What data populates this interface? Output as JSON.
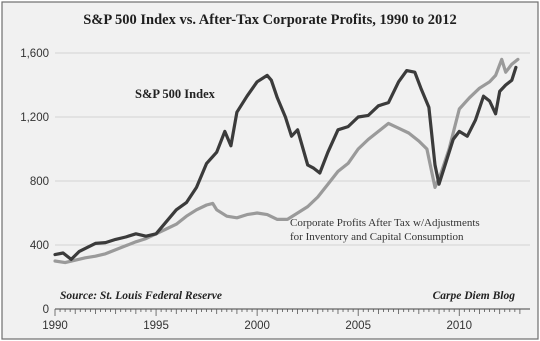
{
  "chart_data": {
    "type": "line",
    "title": "S&P 500 Index vs. After-Tax Corporate Profits, 1990 to 2012",
    "xlabel": "",
    "ylabel": "",
    "xlim": [
      1990,
      2013.5
    ],
    "ylim": [
      0,
      1700
    ],
    "x_ticks": [
      "1990",
      "1995",
      "2000",
      "2005",
      "2010"
    ],
    "y_ticks": [
      "0",
      "400",
      "800",
      "1,200",
      "1,600"
    ],
    "grid": true,
    "series": [
      {
        "name": "S&P 500 Index",
        "color": "#3b3b3b",
        "points": [
          [
            1990.0,
            340
          ],
          [
            1990.4,
            350
          ],
          [
            1990.8,
            310
          ],
          [
            1991.2,
            360
          ],
          [
            1991.6,
            385
          ],
          [
            1992.0,
            410
          ],
          [
            1992.5,
            415
          ],
          [
            1993.0,
            435
          ],
          [
            1993.5,
            450
          ],
          [
            1994.0,
            470
          ],
          [
            1994.5,
            455
          ],
          [
            1995.0,
            470
          ],
          [
            1995.5,
            545
          ],
          [
            1996.0,
            620
          ],
          [
            1996.5,
            665
          ],
          [
            1997.0,
            760
          ],
          [
            1997.5,
            910
          ],
          [
            1998.0,
            980
          ],
          [
            1998.4,
            1110
          ],
          [
            1998.7,
            1020
          ],
          [
            1999.0,
            1230
          ],
          [
            1999.5,
            1330
          ],
          [
            2000.0,
            1420
          ],
          [
            2000.5,
            1460
          ],
          [
            2000.7,
            1430
          ],
          [
            2001.0,
            1320
          ],
          [
            2001.4,
            1200
          ],
          [
            2001.7,
            1080
          ],
          [
            2002.0,
            1120
          ],
          [
            2002.5,
            900
          ],
          [
            2002.8,
            880
          ],
          [
            2003.1,
            850
          ],
          [
            2003.5,
            980
          ],
          [
            2004.0,
            1120
          ],
          [
            2004.5,
            1140
          ],
          [
            2005.0,
            1200
          ],
          [
            2005.5,
            1210
          ],
          [
            2006.0,
            1270
          ],
          [
            2006.5,
            1290
          ],
          [
            2007.0,
            1420
          ],
          [
            2007.4,
            1490
          ],
          [
            2007.8,
            1480
          ],
          [
            2008.1,
            1380
          ],
          [
            2008.5,
            1260
          ],
          [
            2008.8,
            900
          ],
          [
            2009.0,
            780
          ],
          [
            2009.3,
            900
          ],
          [
            2009.7,
            1060
          ],
          [
            2010.0,
            1110
          ],
          [
            2010.4,
            1080
          ],
          [
            2010.8,
            1180
          ],
          [
            2011.2,
            1330
          ],
          [
            2011.5,
            1300
          ],
          [
            2011.8,
            1220
          ],
          [
            2012.0,
            1360
          ],
          [
            2012.3,
            1400
          ],
          [
            2012.6,
            1430
          ],
          [
            2012.8,
            1510
          ]
        ]
      },
      {
        "name": "Corporate Profits After Tax w/Adjustments for Inventory and Capital Consumption",
        "color": "#9a9a9a",
        "points": [
          [
            1990.0,
            300
          ],
          [
            1990.5,
            290
          ],
          [
            1991.0,
            305
          ],
          [
            1991.5,
            320
          ],
          [
            1992.0,
            330
          ],
          [
            1992.5,
            345
          ],
          [
            1993.0,
            370
          ],
          [
            1993.5,
            395
          ],
          [
            1994.0,
            420
          ],
          [
            1994.5,
            440
          ],
          [
            1995.0,
            470
          ],
          [
            1995.5,
            500
          ],
          [
            1996.0,
            530
          ],
          [
            1996.5,
            580
          ],
          [
            1997.0,
            620
          ],
          [
            1997.5,
            650
          ],
          [
            1997.8,
            660
          ],
          [
            1998.0,
            620
          ],
          [
            1998.5,
            580
          ],
          [
            1999.0,
            570
          ],
          [
            1999.5,
            590
          ],
          [
            2000.0,
            600
          ],
          [
            2000.5,
            590
          ],
          [
            2001.0,
            560
          ],
          [
            2001.5,
            560
          ],
          [
            2002.0,
            600
          ],
          [
            2002.5,
            640
          ],
          [
            2003.0,
            700
          ],
          [
            2003.5,
            780
          ],
          [
            2004.0,
            860
          ],
          [
            2004.5,
            910
          ],
          [
            2005.0,
            1000
          ],
          [
            2005.5,
            1060
          ],
          [
            2006.0,
            1110
          ],
          [
            2006.5,
            1160
          ],
          [
            2007.0,
            1130
          ],
          [
            2007.5,
            1100
          ],
          [
            2008.0,
            1050
          ],
          [
            2008.4,
            1000
          ],
          [
            2008.8,
            760
          ],
          [
            2009.1,
            850
          ],
          [
            2009.5,
            1000
          ],
          [
            2010.0,
            1250
          ],
          [
            2010.5,
            1320
          ],
          [
            2011.0,
            1380
          ],
          [
            2011.5,
            1420
          ],
          [
            2011.8,
            1460
          ],
          [
            2012.1,
            1560
          ],
          [
            2012.3,
            1480
          ],
          [
            2012.6,
            1530
          ],
          [
            2012.9,
            1560
          ]
        ]
      }
    ],
    "annotations": {
      "sp_label": "S&P 500 Index",
      "profit_label_line1": "Corporate Profits After Tax w/Adjustments",
      "profit_label_line2": "for Inventory and Capital Consumption",
      "source": "Source: St. Louis Federal Reserve",
      "credit": "Carpe Diem Blog"
    }
  }
}
